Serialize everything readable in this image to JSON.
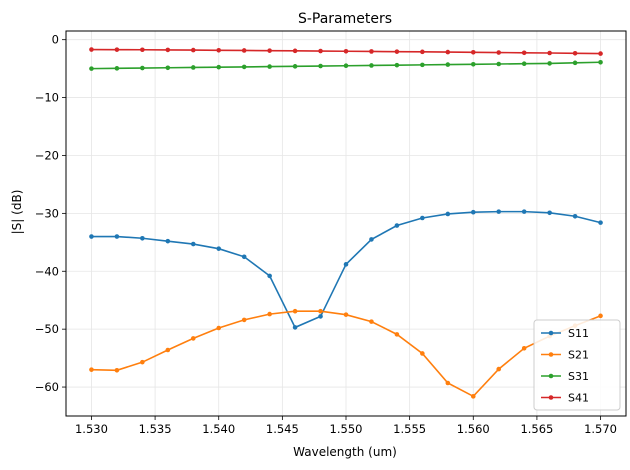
{
  "chart_data": {
    "type": "line",
    "title": "S-Parameters",
    "xlabel": "Wavelength (um)",
    "ylabel": "|S| (dB)",
    "xlim": [
      1.528,
      1.572
    ],
    "ylim": [
      -65,
      1.5
    ],
    "xticks": [
      1.53,
      1.535,
      1.54,
      1.545,
      1.55,
      1.555,
      1.56,
      1.565,
      1.57
    ],
    "xtick_labels": [
      "1.530",
      "1.535",
      "1.540",
      "1.545",
      "1.550",
      "1.555",
      "1.560",
      "1.565",
      "1.570"
    ],
    "yticks": [
      0,
      -10,
      -20,
      -30,
      -40,
      -50,
      -60
    ],
    "ytick_labels": [
      "0",
      "−10",
      "−20",
      "−30",
      "−40",
      "−50",
      "−60"
    ],
    "grid": true,
    "legend_position": "lower-right",
    "x": [
      1.53,
      1.532,
      1.534,
      1.536,
      1.538,
      1.54,
      1.542,
      1.544,
      1.546,
      1.548,
      1.55,
      1.552,
      1.554,
      1.556,
      1.558,
      1.56,
      1.562,
      1.564,
      1.566,
      1.568,
      1.57
    ],
    "series": [
      {
        "name": "S11",
        "color": "#1f77b4",
        "values": [
          -34.0,
          -34.0,
          -34.3,
          -34.8,
          -35.3,
          -36.1,
          -37.5,
          -40.8,
          -49.7,
          -47.8,
          -38.8,
          -34.5,
          -32.1,
          -30.8,
          -30.1,
          -29.8,
          -29.7,
          -29.7,
          -29.9,
          -30.5,
          -31.6
        ]
      },
      {
        "name": "S21",
        "color": "#ff7f0e",
        "values": [
          -57.0,
          -57.1,
          -55.7,
          -53.6,
          -51.6,
          -49.8,
          -48.4,
          -47.4,
          -46.9,
          -46.9,
          -47.5,
          -48.7,
          -50.9,
          -54.2,
          -59.3,
          -61.6,
          -56.9,
          -53.3,
          -51.2,
          -49.4,
          -47.7
        ]
      },
      {
        "name": "S31",
        "color": "#2ca02c",
        "values": [
          -5.0,
          -4.95,
          -4.9,
          -4.85,
          -4.8,
          -4.75,
          -4.7,
          -4.65,
          -4.6,
          -4.55,
          -4.5,
          -4.45,
          -4.4,
          -4.35,
          -4.3,
          -4.25,
          -4.2,
          -4.15,
          -4.1,
          -4.0,
          -3.9
        ]
      },
      {
        "name": "S41",
        "color": "#d62728",
        "values": [
          -1.7,
          -1.72,
          -1.74,
          -1.77,
          -1.8,
          -1.83,
          -1.86,
          -1.9,
          -1.93,
          -1.96,
          -2.0,
          -2.03,
          -2.07,
          -2.1,
          -2.14,
          -2.18,
          -2.22,
          -2.26,
          -2.3,
          -2.35,
          -2.4
        ]
      }
    ]
  }
}
